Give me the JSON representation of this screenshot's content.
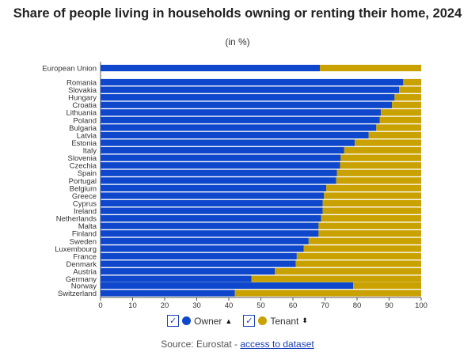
{
  "chart_data": {
    "type": "bar",
    "orientation": "horizontal",
    "stacked": true,
    "title": "Share of people living in households owning or renting their home, 2024",
    "subtitle": "(in %)",
    "categories": [
      "European Union",
      "Romania",
      "Slovakia",
      "Hungary",
      "Croatia",
      "Lithuania",
      "Poland",
      "Bulgaria",
      "Latvia",
      "Estonia",
      "Italy",
      "Slovenia",
      "Czechia",
      "Spain",
      "Portugal",
      "Belgium",
      "Greece",
      "Cyprus",
      "Ireland",
      "Netherlands",
      "Malta",
      "Finland",
      "Sweden",
      "Luxembourg",
      "France",
      "Denmark",
      "Austria",
      "Germany",
      "Norway",
      "Switzerland"
    ],
    "series": [
      {
        "name": "Owner",
        "color": "#0e47cb",
        "values": [
          68.4,
          94.4,
          93.1,
          91.7,
          90.9,
          87.4,
          87.1,
          86.0,
          83.6,
          79.3,
          76.0,
          74.9,
          74.7,
          73.7,
          73.5,
          70.4,
          69.7,
          69.3,
          69.3,
          68.8,
          68.0,
          68.0,
          64.9,
          63.4,
          61.2,
          60.9,
          54.4,
          47.1,
          78.8,
          41.9
        ]
      },
      {
        "name": "Tenant",
        "color": "#c9a100",
        "values": [
          31.6,
          5.6,
          6.9,
          8.3,
          9.1,
          12.6,
          12.9,
          14.0,
          16.4,
          20.7,
          24.0,
          25.1,
          25.3,
          26.3,
          26.5,
          29.6,
          30.3,
          30.7,
          30.7,
          31.2,
          32.0,
          32.0,
          35.1,
          36.6,
          38.8,
          39.1,
          45.6,
          52.9,
          21.2,
          58.1
        ]
      }
    ],
    "xlim": [
      0,
      100
    ],
    "xticks": [
      "0",
      "10",
      "20",
      "30",
      "40",
      "50",
      "60",
      "70",
      "80",
      "90",
      "100"
    ],
    "grid": false,
    "legend_position": "bottom"
  },
  "legend": {
    "owner": "Owner",
    "tenant": "Tenant"
  },
  "source": {
    "prefix": "Source: Eurostat - ",
    "link": "access to dataset"
  }
}
